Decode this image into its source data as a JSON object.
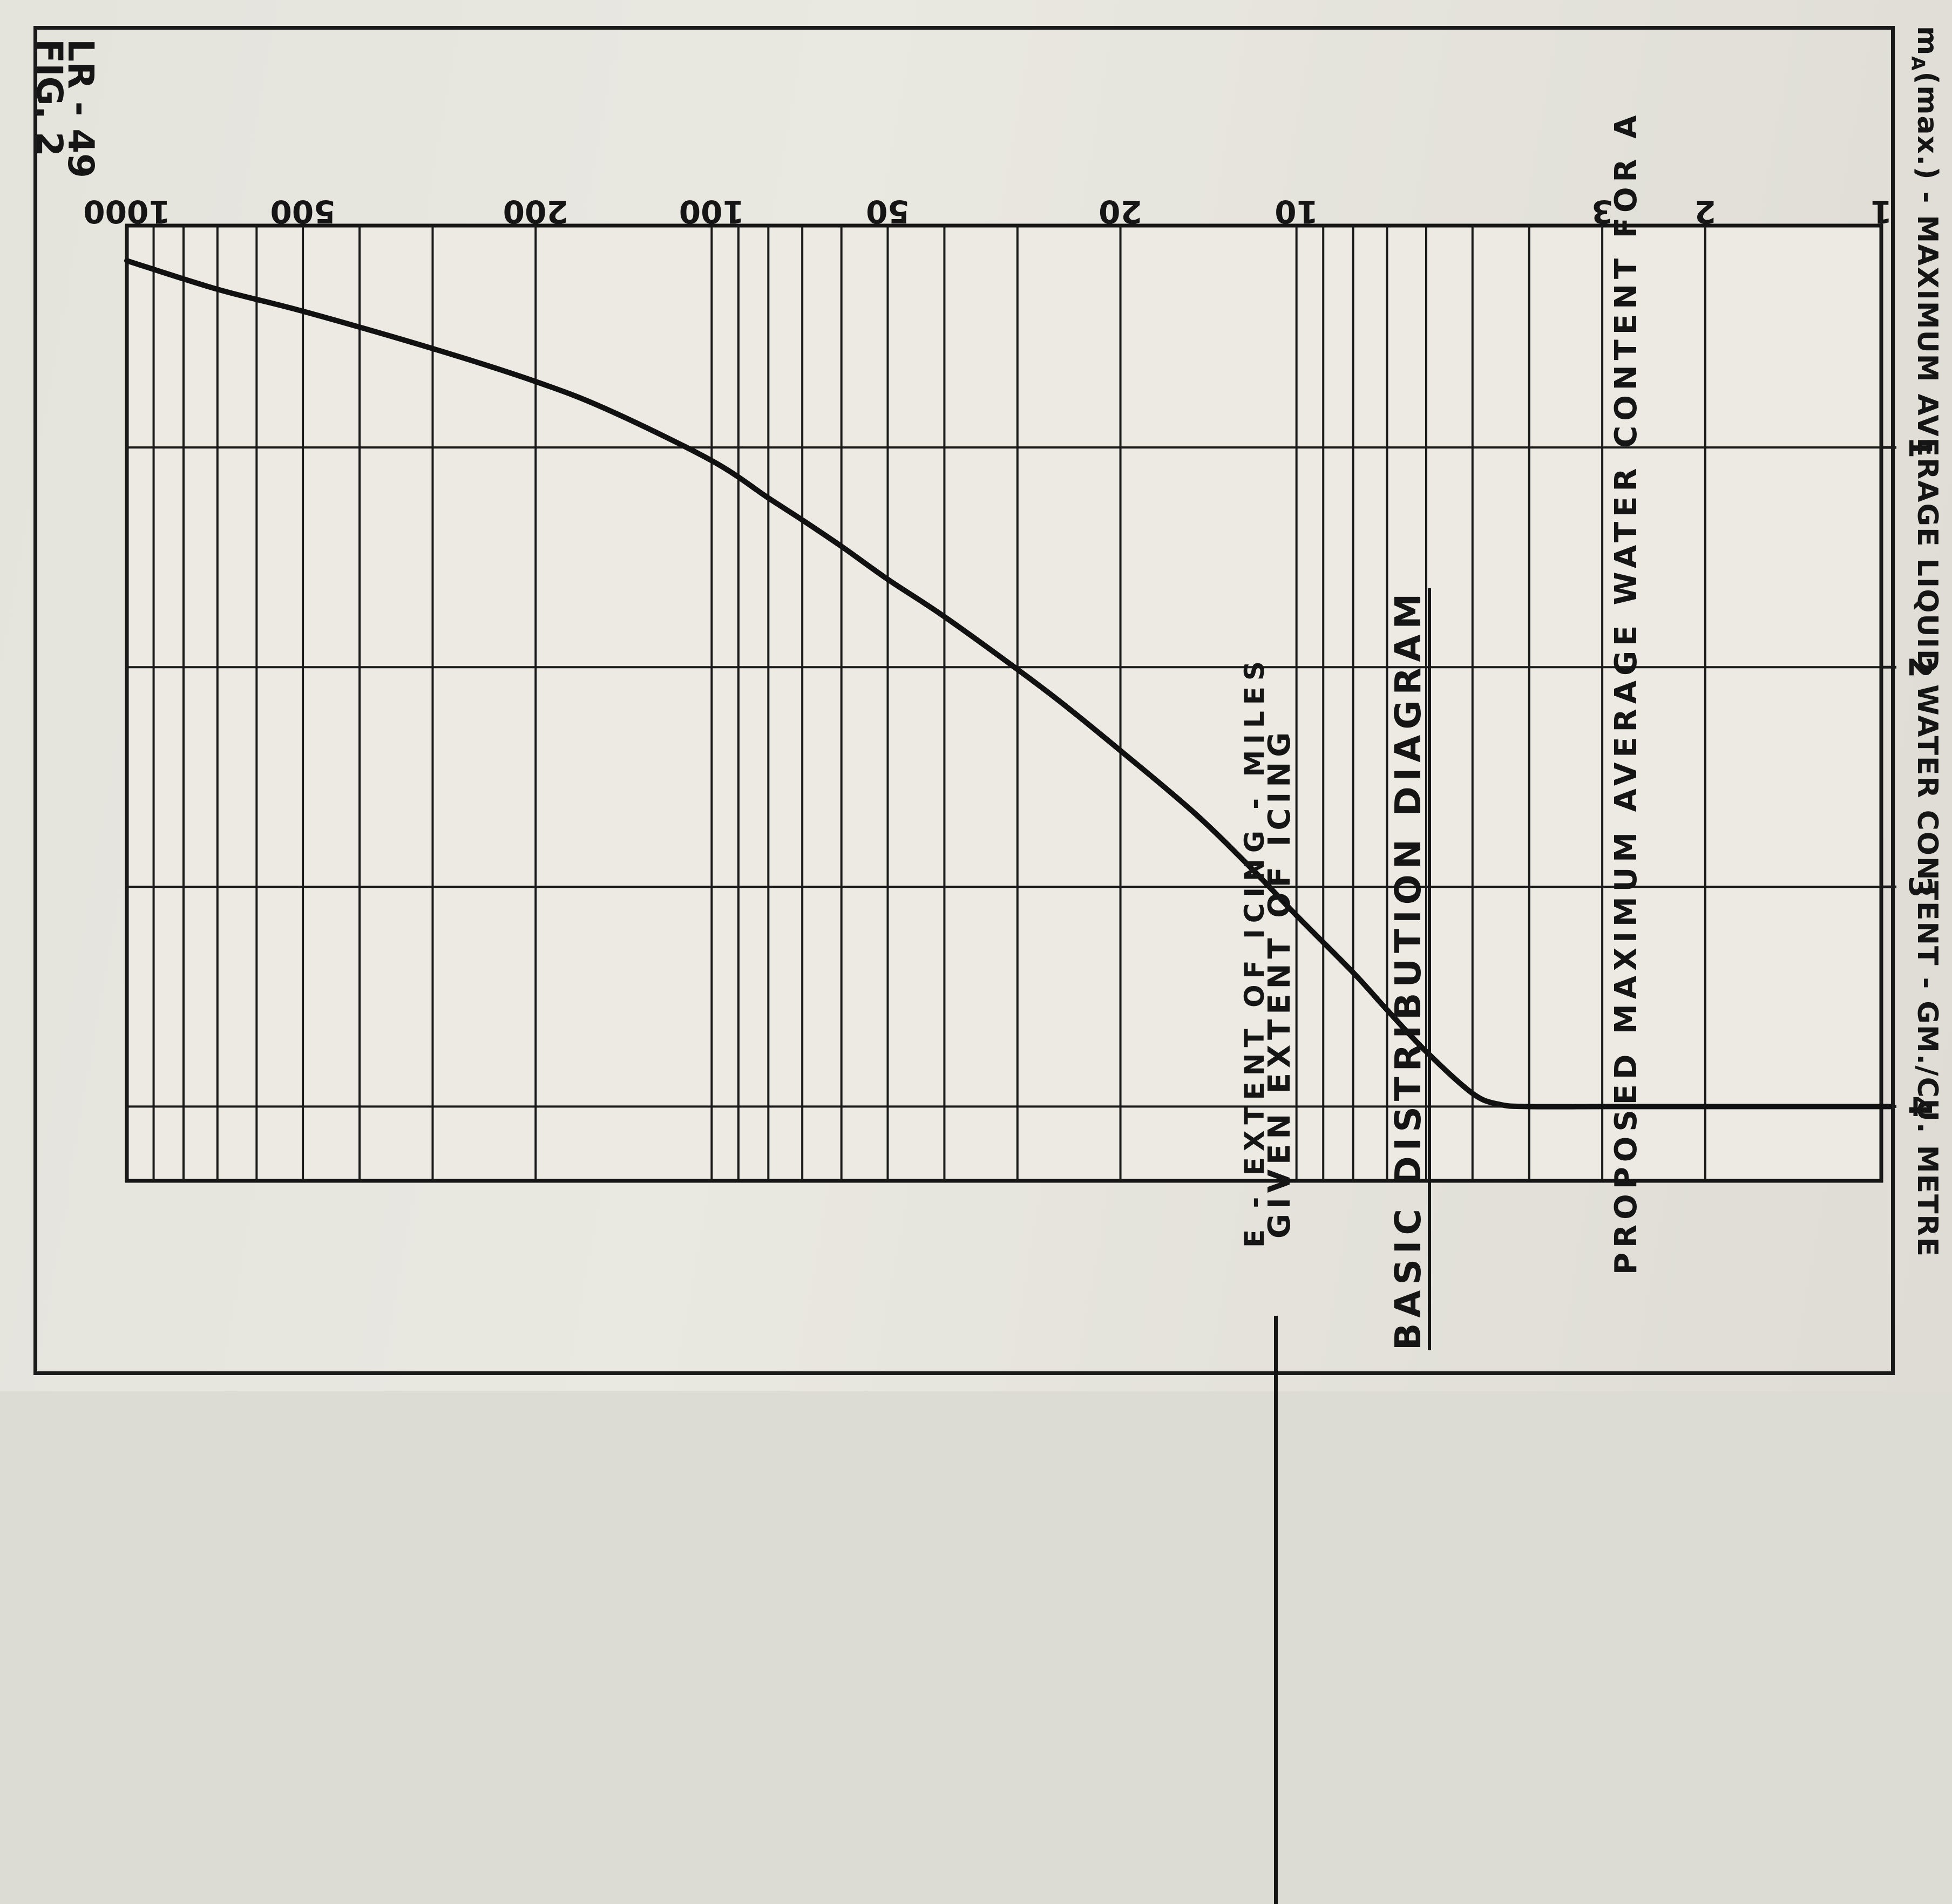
{
  "figure_label": {
    "fig": "FIG. 2",
    "code": "LR - 49"
  },
  "chart_data": {
    "type": "line",
    "title": "BASIC DISTRIBUTION DIAGRAM",
    "subtitle_line1": "PROPOSED MAXIMUM AVERAGE WATER CONTENT FOR A",
    "subtitle_line2": "GIVEN EXTENT OF ICING",
    "xlabel": "E - EXTENT OF ICING - MILES",
    "ylabel": "m_A(max.) - MAXIMUM AVERAGE LIQUID WATER CONTENT - GM./CU. METRE",
    "ylabel_parts": {
      "m": "m",
      "sub": "A",
      "rest": "(max.) - MAXIMUM AVERAGE LIQUID WATER CONTENT - GM./CU. METRE"
    },
    "x_scale": "log",
    "xlim": [
      1,
      1000
    ],
    "ylim": [
      0,
      4
    ],
    "x_ticks": [
      1,
      2,
      3,
      10,
      20,
      50,
      100,
      200,
      500,
      1000
    ],
    "x_tick_labels": [
      "1",
      "2",
      "3",
      "10",
      "20",
      "50",
      "100",
      "200",
      "500",
      "1000"
    ],
    "x_gridlines": [
      1,
      2,
      3,
      4,
      5,
      6,
      7,
      8,
      9,
      10,
      20,
      30,
      40,
      50,
      60,
      70,
      80,
      90,
      100,
      200,
      300,
      400,
      500,
      600,
      700,
      800,
      900,
      1000
    ],
    "y_ticks": [
      1,
      2,
      3,
      4
    ],
    "y_tick_labels": [
      "1",
      "2",
      "3",
      "4"
    ],
    "grid": true,
    "series": [
      {
        "x": [
          1,
          2,
          3,
          4,
          4.5,
          5,
          6,
          7,
          8,
          10,
          12,
          15,
          20,
          25,
          30,
          40,
          50,
          60,
          70,
          80,
          100,
          150,
          200,
          300,
          500,
          700,
          1000
        ],
        "y": [
          4.0,
          4.0,
          4.0,
          4.0,
          3.99,
          3.94,
          3.75,
          3.56,
          3.39,
          3.13,
          2.91,
          2.66,
          2.38,
          2.17,
          2.01,
          1.77,
          1.6,
          1.45,
          1.33,
          1.23,
          1.06,
          0.83,
          0.7,
          0.55,
          0.38,
          0.28,
          0.15
        ]
      }
    ]
  }
}
